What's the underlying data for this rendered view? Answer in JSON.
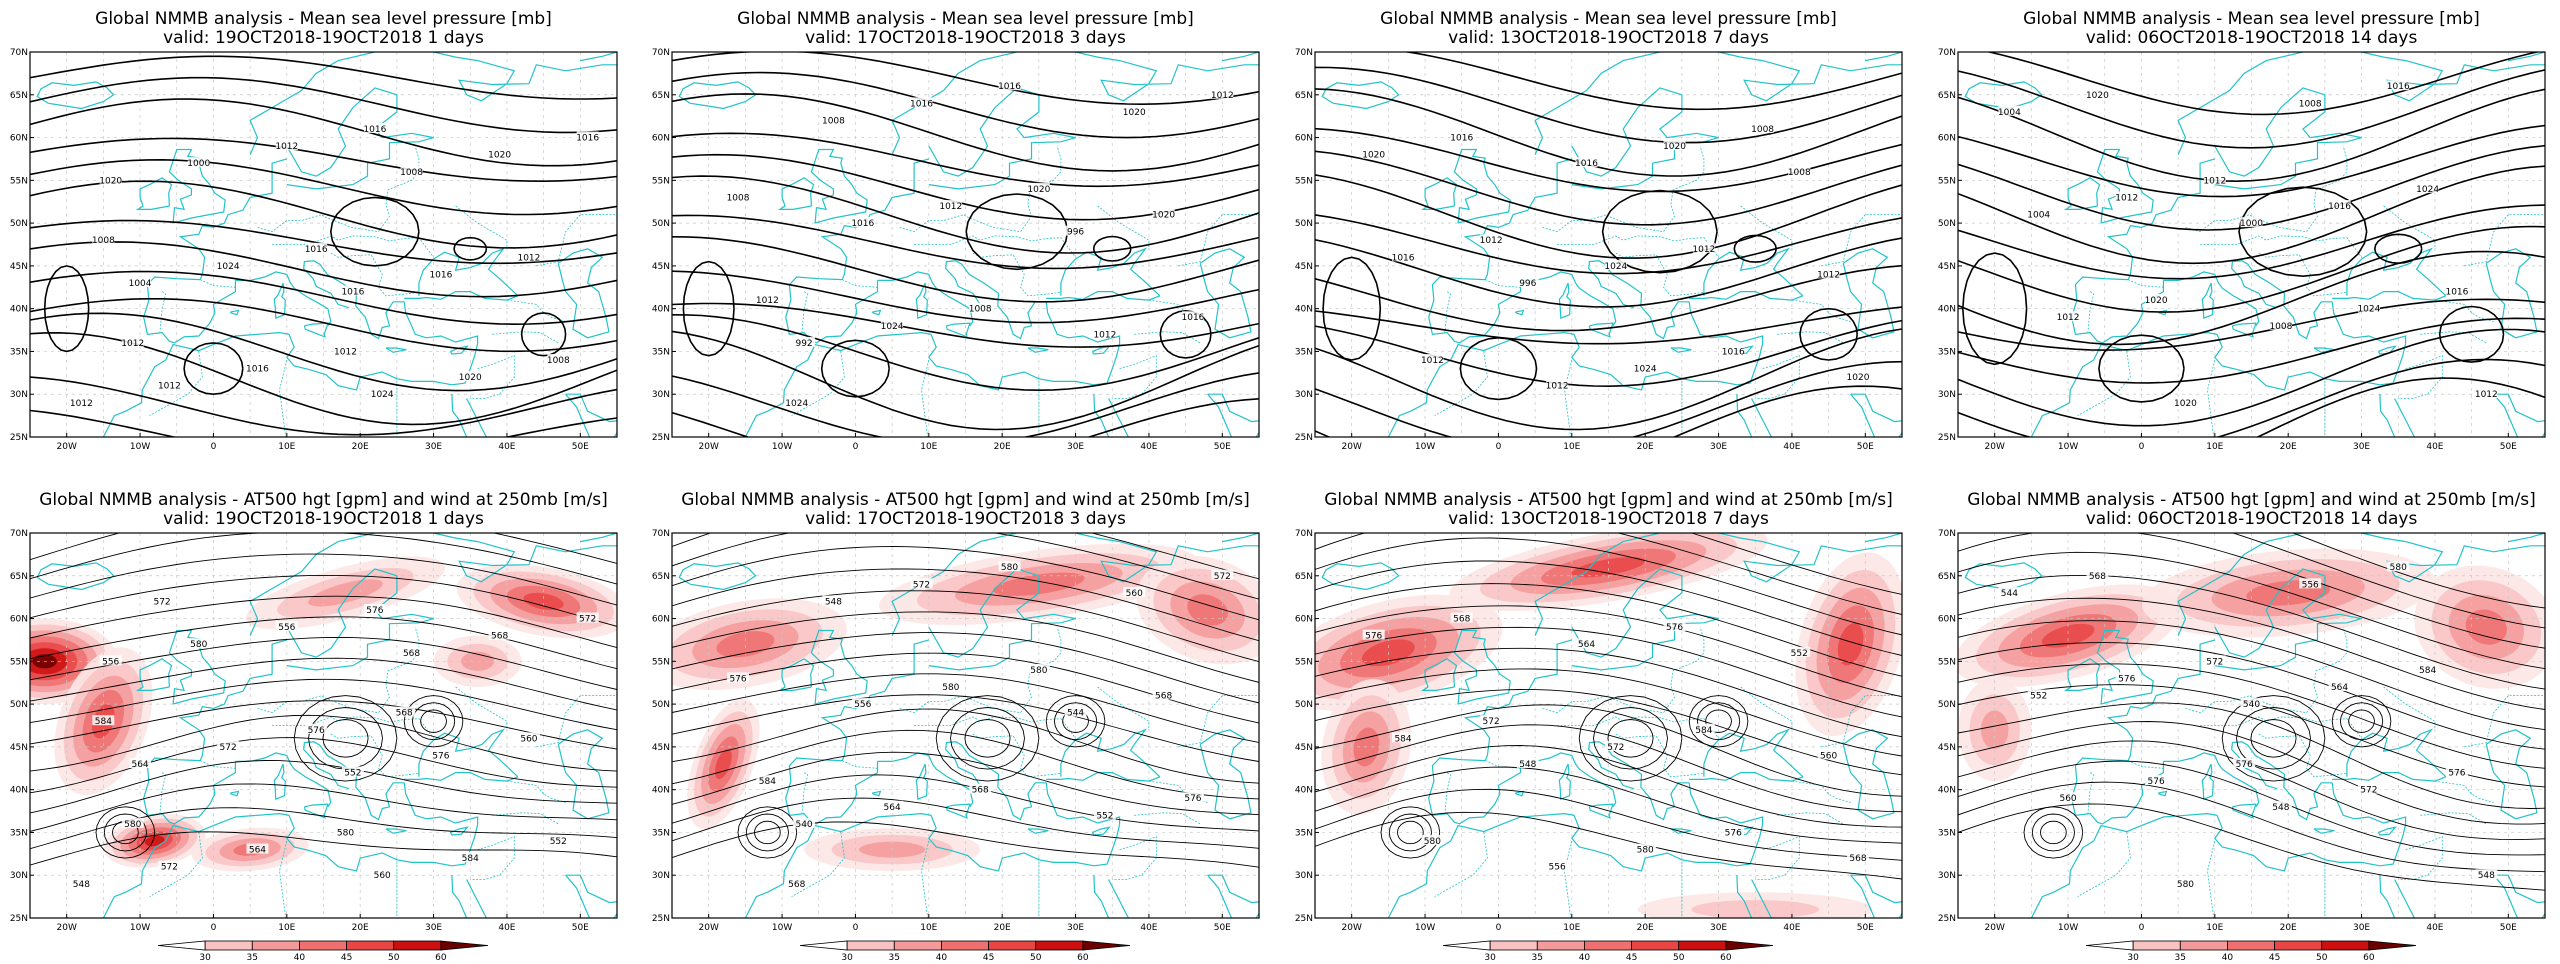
{
  "panels": [
    {
      "row": 0,
      "col": 0,
      "title1": "Global NMMB analysis - Mean sea level pressure [mb]",
      "title2": "valid: 19OCT2018-19OCT2018  1 days",
      "kind": "mslp",
      "labels": [
        "1012",
        "1016",
        "1020",
        "1024",
        "1004",
        "1008",
        "1012",
        "1016",
        "1000",
        "1020",
        "1024",
        "1020",
        "1016",
        "1012",
        "1012",
        "1008",
        "1016",
        "1016",
        "1012",
        "1008",
        "1016",
        "1012"
      ]
    },
    {
      "row": 0,
      "col": 1,
      "title1": "Global NMMB analysis - Mean sea level pressure [mb]",
      "title2": "valid: 17OCT2018-19OCT2018  3 days",
      "kind": "mslp",
      "labels": [
        "992",
        "996",
        "1008",
        "1012",
        "1016",
        "1020",
        "1024",
        "1020",
        "1016",
        "1016",
        "1012",
        "1012",
        "1008",
        "1008",
        "1016",
        "1012",
        "1020",
        "1024"
      ]
    },
    {
      "row": 0,
      "col": 2,
      "title1": "Global NMMB analysis - Mean sea level pressure [mb]",
      "title2": "valid: 13OCT2018-19OCT2018  7 days",
      "kind": "mslp",
      "labels": [
        "996",
        "1008",
        "1012",
        "1012",
        "1016",
        "1020",
        "1024",
        "1020",
        "1024",
        "1016",
        "1020",
        "1012",
        "1012",
        "1016",
        "1016",
        "1012",
        "1008"
      ]
    },
    {
      "row": 0,
      "col": 3,
      "title1": "Global NMMB analysis - Mean sea level pressure [mb]",
      "title2": "valid: 06OCT2018-19OCT2018  14 days",
      "kind": "mslp",
      "labels": [
        "1000",
        "1004",
        "1008",
        "1004",
        "1008",
        "1012",
        "1016",
        "1020",
        "1024",
        "1012",
        "1016",
        "1020",
        "1024",
        "1020",
        "1016",
        "1012",
        "1012"
      ]
    },
    {
      "row": 1,
      "col": 0,
      "title1": "Global NMMB analysis - AT500 hgt [gpm] and wind at 250mb [m/s]",
      "title2": "valid: 19OCT2018-19OCT2018  1 days",
      "kind": "z500",
      "labels": [
        "548",
        "552",
        "556",
        "560",
        "564",
        "568",
        "572",
        "576",
        "580",
        "584",
        "572",
        "568",
        "564",
        "560",
        "556",
        "552",
        "576",
        "572",
        "580",
        "584",
        "576",
        "580",
        "568",
        "572"
      ]
    },
    {
      "row": 1,
      "col": 1,
      "title1": "Global NMMB analysis - AT500 hgt [gpm] and wind at 250mb [m/s]",
      "title2": "valid: 17OCT2018-19OCT2018  3 days",
      "kind": "z500",
      "labels": [
        "540",
        "544",
        "548",
        "552",
        "556",
        "560",
        "564",
        "568",
        "572",
        "576",
        "580",
        "572",
        "568",
        "576",
        "580",
        "584",
        "580",
        "568"
      ]
    },
    {
      "row": 1,
      "col": 2,
      "title1": "Global NMMB analysis - AT500 hgt [gpm] and wind at 250mb [m/s]",
      "title2": "valid: 13OCT2018-19OCT2018  7 days",
      "kind": "z500",
      "labels": [
        "548",
        "552",
        "556",
        "560",
        "564",
        "568",
        "572",
        "576",
        "580",
        "584",
        "576",
        "580",
        "584",
        "568",
        "576",
        "572"
      ]
    },
    {
      "row": 1,
      "col": 3,
      "title1": "Global NMMB analysis - AT500 hgt [gpm] and wind at 250mb [m/s]",
      "title2": "valid: 06OCT2018-19OCT2018  14 days",
      "kind": "z500",
      "labels": [
        "540",
        "544",
        "548",
        "552",
        "556",
        "560",
        "564",
        "568",
        "572",
        "576",
        "580",
        "576",
        "584",
        "580",
        "576",
        "572",
        "548",
        "576"
      ]
    }
  ],
  "lat_labels": [
    "70N",
    "65N",
    "60N",
    "55N",
    "50N",
    "45N",
    "40N",
    "35N",
    "30N",
    "25N"
  ],
  "lon_labels": [
    "20W",
    "10W",
    "0",
    "10E",
    "20E",
    "30E",
    "40E",
    "50E"
  ],
  "colorbar_ticks": [
    "30",
    "35",
    "40",
    "45",
    "50",
    "60"
  ],
  "colors": {
    "coast": "#22c3c9",
    "contour": "#000000",
    "grid": "#c8c8c8",
    "jet": [
      "#fde5e5",
      "#f9c2c2",
      "#f49a9a",
      "#ef7070",
      "#e84545",
      "#cc1010",
      "#6a0000"
    ]
  }
}
